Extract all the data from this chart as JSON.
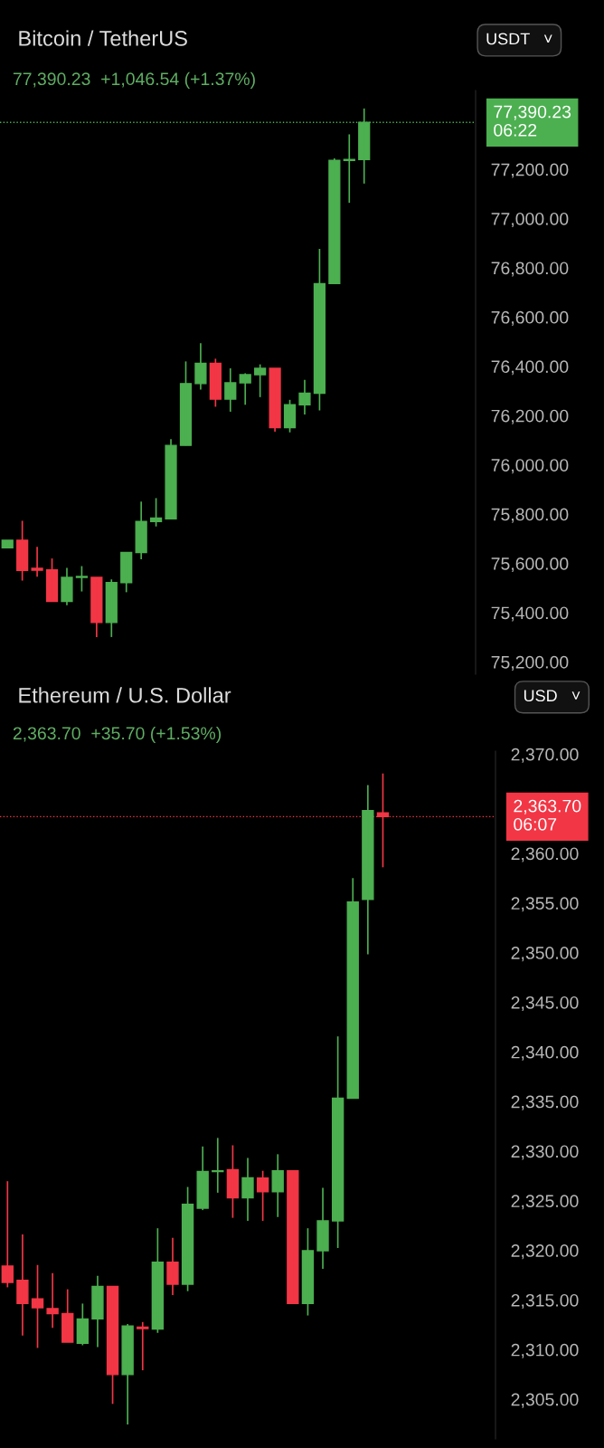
{
  "chart_data": [
    {
      "type": "candlestick",
      "title": "Bitcoin / TetherUS",
      "subtitle": "77,390.23  +1,046.54 (+1.37%)",
      "annotations": [
        "USDT   ˅"
      ],
      "categories": [
        null,
        null,
        null,
        null,
        null,
        null,
        null,
        null,
        null,
        null,
        null,
        null,
        null,
        null,
        null,
        null,
        null,
        null,
        null,
        null,
        null,
        null,
        null,
        null,
        null,
        null,
        null,
        null,
        null,
        null,
        null,
        null
      ],
      "ohlc": [
        [
          75663,
          75694,
          75663,
          75694
        ],
        [
          75694,
          75773,
          75530,
          75571
        ],
        [
          75580,
          75667,
          75546,
          75572
        ],
        [
          75574,
          75620,
          75446,
          75446
        ],
        [
          75446,
          75582,
          75430,
          75543
        ],
        [
          75543,
          75589,
          75486,
          75547
        ],
        [
          75543,
          75543,
          75301,
          75360
        ],
        [
          75360,
          75535,
          75301,
          75522
        ],
        [
          75522,
          75644,
          75483,
          75644
        ],
        [
          75644,
          75851,
          75617,
          75770
        ],
        [
          75770,
          75865,
          75750,
          75784
        ],
        [
          75781,
          76104,
          75781,
          76079
        ],
        [
          76079,
          76420,
          76079,
          76330
        ],
        [
          76330,
          76494,
          76306,
          76412
        ],
        [
          76412,
          76431,
          76236,
          76267
        ],
        [
          76267,
          76392,
          76216,
          76333
        ],
        [
          76333,
          76372,
          76244,
          76366
        ],
        [
          76366,
          76408,
          76275,
          76392
        ],
        [
          76392,
          76392,
          76135,
          76151
        ],
        [
          76151,
          76264,
          76132,
          76244
        ],
        [
          76244,
          76345,
          76205,
          76291
        ],
        [
          76291,
          76877,
          76221,
          76736
        ],
        [
          76736,
          77244,
          76736,
          77236
        ],
        [
          77236,
          77342,
          77064,
          77240
        ],
        [
          77240,
          77447,
          77142,
          77390.23
        ],
        null,
        null,
        null,
        null,
        null,
        null,
        null
      ],
      "colors": [
        "#4caf50",
        "#f23645",
        "#f23645",
        "#f23645",
        "#4caf50",
        "#4caf50",
        "#f23645",
        "#4caf50",
        "#4caf50",
        "#4caf50",
        "#4caf50",
        "#4caf50",
        "#4caf50",
        "#4caf50",
        "#f23645",
        "#4caf50",
        "#4caf50",
        "#4caf50",
        "#f23645",
        "#4caf50",
        "#4caf50",
        "#4caf50",
        "#4caf50",
        "#4caf50",
        "#4caf50",
        null,
        null,
        null,
        null,
        null,
        null,
        null
      ],
      "ylim": [
        75150,
        77520
      ],
      "yticks": [
        {
          "value": 75200,
          "label": "75,200.00"
        },
        {
          "value": 75400,
          "label": "75,400.00"
        },
        {
          "value": 75600,
          "label": "75,600.00"
        },
        {
          "value": 75800,
          "label": "75,800.00"
        },
        {
          "value": 76000,
          "label": "76,000.00"
        },
        {
          "value": 76200,
          "label": "76,200.00"
        },
        {
          "value": 76400,
          "label": "76,400.00"
        },
        {
          "value": 76600,
          "label": "76,600.00"
        },
        {
          "value": 76800,
          "label": "76,800.00"
        },
        {
          "value": 77000,
          "label": "77,000.00"
        },
        {
          "value": 77200,
          "label": "77,200.00"
        }
      ],
      "tick_labels": "y",
      "ref_lines": [
        {
          "axis": "y",
          "value": 77390.23,
          "label": "77,390.23\n06:22",
          "color": "#4caf50",
          "line_style": "dotted"
        }
      ]
    },
    {
      "type": "candlestick",
      "title": "Ethereum / U.S. Dollar",
      "subtitle": "2,363.70  +35.70 (+1.53%)",
      "annotations": [
        "USD   ˅"
      ],
      "categories": [
        null,
        null,
        null,
        null,
        null,
        null,
        null,
        null,
        null,
        null,
        null,
        null,
        null,
        null,
        null,
        null,
        null,
        null,
        null,
        null,
        null,
        null,
        null,
        null,
        null,
        null,
        null,
        null,
        null,
        null,
        null,
        null,
        null
      ],
      "ohlc": [
        [
          2318.42,
          2326.97,
          2316.28,
          2316.78
        ],
        [
          2316.98,
          2321.6,
          2311.42,
          2314.64
        ],
        [
          2315.11,
          2318.53,
          2310.17,
          2314.22
        ],
        [
          2314.14,
          2317.72,
          2312.19,
          2313.63
        ],
        [
          2313.63,
          2316.08,
          2310.75,
          2310.75
        ],
        [
          2310.64,
          2314.64,
          2310.44,
          2313.09
        ],
        [
          2313.09,
          2317.44,
          2310.25,
          2316.36
        ],
        [
          2316.36,
          2316.36,
          2304.53,
          2307.49
        ],
        [
          2307.49,
          2312.58,
          2302.47,
          2312.39
        ],
        [
          2312.27,
          2312.78,
          2307.92,
          2312.12
        ],
        [
          2312.08,
          2322.23,
          2311.69,
          2318.81
        ],
        [
          2318.81,
          2321.26,
          2315.5,
          2316.59
        ],
        [
          2316.59,
          2326.39,
          2315.89,
          2324.64
        ],
        [
          2324.25,
          2330.47,
          2324.06,
          2327.94
        ],
        [
          2327.94,
          2331.33,
          2325.81,
          2328.02
        ],
        [
          2328.14,
          2330.59,
          2323.28,
          2325.3
        ],
        [
          2325.3,
          2329.31,
          2322.97,
          2327.32
        ],
        [
          2327.28,
          2328.02,
          2322.97,
          2325.92
        ],
        [
          2325.92,
          2329.69,
          2323.36,
          2328.02
        ],
        [
          2328.02,
          2328.02,
          2314.64,
          2314.64
        ],
        [
          2314.64,
          2322.23,
          2313.44,
          2319.97
        ],
        [
          2319.97,
          2326.31,
          2318.14,
          2322.97
        ],
        [
          2322.97,
          2341.56,
          2320.24,
          2335.33
        ],
        [
          2335.33,
          2357.51,
          2335.33,
          2355.1
        ],
        [
          2355.37,
          2366.89,
          2349.84,
          2364.32
        ],
        [
          2364.09,
          2368.05,
          2358.6,
          2363.7
        ],
        null,
        null,
        null,
        null,
        null,
        null,
        null
      ],
      "colors": [
        "#f23645",
        "#f23645",
        "#f23645",
        "#f23645",
        "#f23645",
        "#4caf50",
        "#4caf50",
        "#f23645",
        "#4caf50",
        "#f23645",
        "#4caf50",
        "#f23645",
        "#4caf50",
        "#4caf50",
        "#4caf50",
        "#f23645",
        "#4caf50",
        "#f23645",
        "#4caf50",
        "#f23645",
        "#4caf50",
        "#4caf50",
        "#4caf50",
        "#4caf50",
        "#4caf50",
        "#f23645",
        null,
        null,
        null,
        null,
        null,
        null,
        null
      ],
      "ylim": [
        2301,
        2370.3
      ],
      "yticks": [
        {
          "value": 2305,
          "label": "2,305.00"
        },
        {
          "value": 2310,
          "label": "2,310.00"
        },
        {
          "value": 2315,
          "label": "2,315.00"
        },
        {
          "value": 2320,
          "label": "2,320.00"
        },
        {
          "value": 2325,
          "label": "2,325.00"
        },
        {
          "value": 2330,
          "label": "2,330.00"
        },
        {
          "value": 2335,
          "label": "2,335.00"
        },
        {
          "value": 2340,
          "label": "2,340.00"
        },
        {
          "value": 2345,
          "label": "2,345.00"
        },
        {
          "value": 2350,
          "label": "2,350.00"
        },
        {
          "value": 2355,
          "label": "2,355.00"
        },
        {
          "value": 2360,
          "label": "2,360.00"
        },
        {
          "value": 2370,
          "label": "2,370.00"
        }
      ],
      "tick_labels": "y",
      "ref_lines": [
        {
          "axis": "y",
          "value": 2363.7,
          "label": "2,363.70\n06:07",
          "color": "#f23645",
          "line_style": "dotted"
        }
      ]
    }
  ]
}
